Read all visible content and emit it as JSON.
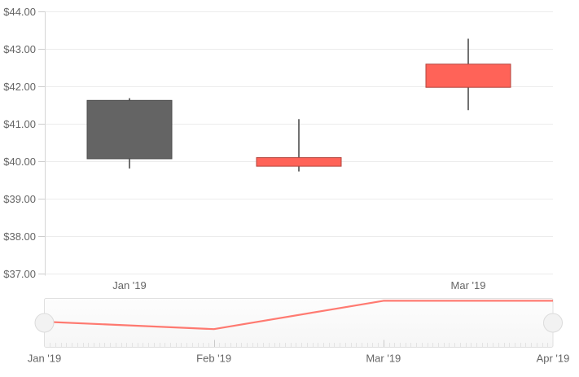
{
  "chart_data": {
    "type": "candlestick",
    "title": "",
    "currency_prefix": "$",
    "categories": [
      "Jan '19",
      "Feb '19",
      "Mar '19"
    ],
    "series": [
      {
        "name": "price",
        "points": [
          {
            "category": "Jan '19",
            "open": 41.62,
            "high": 41.68,
            "low": 39.8,
            "close": 40.06,
            "direction": "down"
          },
          {
            "category": "Feb '19",
            "open": 39.86,
            "high": 41.12,
            "low": 39.72,
            "close": 40.09,
            "direction": "up"
          },
          {
            "category": "Mar '19",
            "open": 41.97,
            "high": 43.27,
            "low": 41.36,
            "close": 42.59,
            "direction": "up"
          }
        ]
      }
    ],
    "ylim": [
      37,
      44
    ],
    "y_ticks": [
      {
        "value": 44,
        "label": "$44.00"
      },
      {
        "value": 43,
        "label": "$43.00"
      },
      {
        "value": 42,
        "label": "$42.00"
      },
      {
        "value": 41,
        "label": "$41.00"
      },
      {
        "value": 40,
        "label": "$40.00"
      },
      {
        "value": 39,
        "label": "$39.00"
      },
      {
        "value": 38,
        "label": "$38.00"
      },
      {
        "value": 37,
        "label": "$37.00"
      }
    ],
    "x_labels": [
      {
        "text": "Jan '19",
        "slot": 0
      },
      {
        "text": "Mar '19",
        "slot": 2
      }
    ],
    "grid": "horizontal-only",
    "legend": "none"
  },
  "navigator": {
    "months": [
      "Jan '19",
      "Feb '19",
      "Mar '19",
      "Apr '19"
    ],
    "line_values": [
      41.68,
      41.12,
      43.27,
      43.27
    ],
    "ylim": [
      40.05,
      43.45
    ],
    "selected_range": "full",
    "handles": [
      "left",
      "right"
    ]
  },
  "colors": {
    "up_fill": "#ff6358",
    "up_border": "#b2453e",
    "down_fill": "#646464",
    "down_border": "#4b4b4b",
    "wick": "#4d4d4d",
    "gridline": "#ececec",
    "axis_line": "#d6d6d6",
    "tick": "#cdcdcd",
    "label_text": "#656565",
    "nav_line": "#ff6358",
    "nav_box_border": "#e0e0e0",
    "nav_box_fill_top": "#fdfdfd",
    "nav_box_fill_bottom": "#f6f6f6",
    "nav_minor_tick": "#e3e3e3",
    "nav_major_tick": "#c9c9c9",
    "handle_fill": "#f2f2f2",
    "handle_border": "#dbdbdb",
    "background": "#ffffff"
  }
}
